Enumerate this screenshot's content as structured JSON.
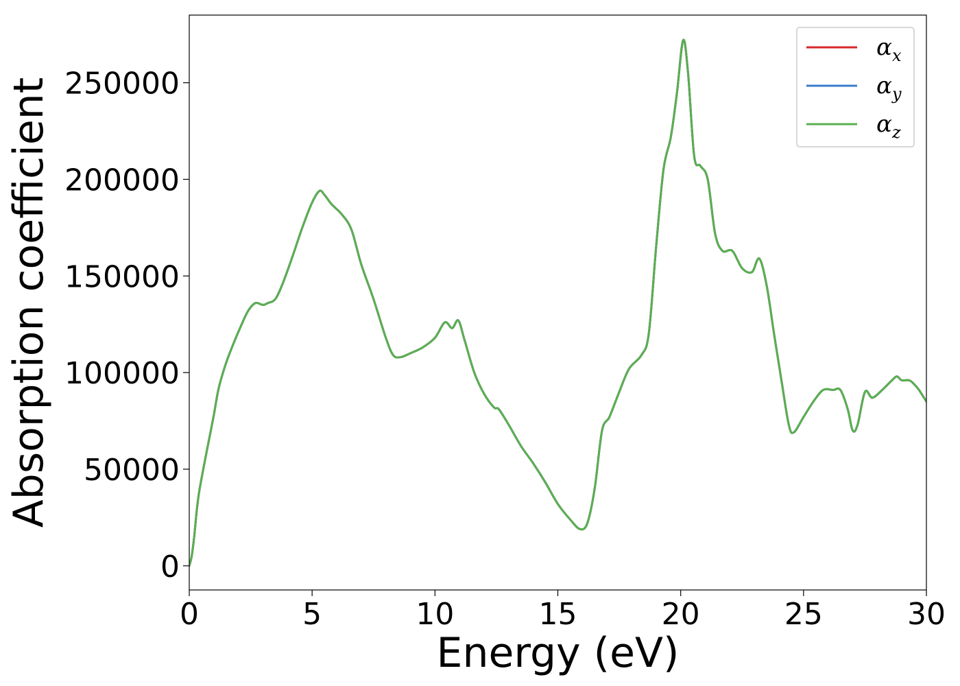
{
  "chart_data": {
    "type": "line",
    "title": "",
    "xlabel": "Energy (eV)",
    "ylabel": "Absorption coefficient",
    "xlim": [
      0,
      30
    ],
    "ylim": [
      -12500,
      285000
    ],
    "xticks": [
      0,
      5,
      10,
      15,
      20,
      25,
      30
    ],
    "yticks": [
      0,
      50000,
      100000,
      150000,
      200000,
      250000
    ],
    "grid": false,
    "legend_position": "top-right",
    "x": [
      0,
      0.1,
      0.2,
      0.3,
      0.4,
      0.6,
      0.8,
      1.0,
      1.2,
      1.5,
      1.8,
      2.1,
      2.4,
      2.7,
      3.0,
      3.2,
      3.5,
      3.8,
      4.2,
      4.6,
      5.0,
      5.3,
      5.5,
      5.8,
      6.2,
      6.6,
      7.0,
      7.5,
      8.0,
      8.3,
      8.6,
      9.0,
      9.5,
      10.0,
      10.4,
      10.7,
      10.95,
      11.2,
      11.6,
      12.0,
      12.4,
      12.6,
      13.0,
      13.5,
      14.0,
      14.5,
      15.0,
      15.5,
      15.9,
      16.2,
      16.5,
      16.8,
      17.1,
      17.5,
      17.9,
      18.4,
      18.7,
      19.0,
      19.3,
      19.6,
      19.85,
      20.1,
      20.3,
      20.55,
      20.8,
      21.1,
      21.4,
      21.7,
      22.1,
      22.5,
      22.9,
      23.2,
      23.5,
      23.8,
      24.1,
      24.4,
      24.6,
      25.0,
      25.4,
      25.8,
      26.2,
      26.5,
      26.8,
      27.0,
      27.2,
      27.5,
      27.8,
      28.2,
      28.6,
      28.8,
      29.0,
      29.3,
      29.5,
      29.7,
      30.0
    ],
    "series": [
      {
        "name": "α_x",
        "color": "#d62728",
        "values": [
          0,
          5000,
          15000,
          28000,
          38000,
          52000,
          65000,
          78000,
          92000,
          105000,
          115000,
          124000,
          132000,
          136000,
          135000,
          136000,
          138000,
          146000,
          160000,
          175000,
          188000,
          194000,
          192000,
          187000,
          182000,
          174000,
          156000,
          138000,
          118000,
          109000,
          108000,
          110000,
          113000,
          118000,
          126000,
          123000,
          127000,
          117000,
          100000,
          89000,
          82000,
          81000,
          73000,
          62000,
          53000,
          43000,
          32000,
          24000,
          19000,
          22000,
          40000,
          70000,
          77000,
          90000,
          102000,
          109000,
          120000,
          165000,
          205000,
          222000,
          245000,
          272000,
          255000,
          212000,
          207000,
          200000,
          172000,
          163000,
          163000,
          154000,
          152000,
          159000,
          145000,
          120000,
          96000,
          73000,
          69000,
          77000,
          85000,
          91000,
          91000,
          91000,
          81000,
          70000,
          73000,
          90000,
          87000,
          91000,
          96000,
          98000,
          96000,
          96000,
          94000,
          91000,
          85000
        ]
      },
      {
        "name": "α_y",
        "color": "#3a7bc8",
        "values": [
          0,
          5000,
          15000,
          28000,
          38000,
          52000,
          65000,
          78000,
          92000,
          105000,
          115000,
          124000,
          132000,
          136000,
          135000,
          136000,
          138000,
          146000,
          160000,
          175000,
          188000,
          194000,
          192000,
          187000,
          182000,
          174000,
          156000,
          138000,
          118000,
          109000,
          108000,
          110000,
          113000,
          118000,
          126000,
          123000,
          127000,
          117000,
          100000,
          89000,
          82000,
          81000,
          73000,
          62000,
          53000,
          43000,
          32000,
          24000,
          19000,
          22000,
          40000,
          70000,
          77000,
          90000,
          102000,
          109000,
          120000,
          165000,
          205000,
          222000,
          245000,
          272000,
          255000,
          212000,
          207000,
          200000,
          172000,
          163000,
          163000,
          154000,
          152000,
          159000,
          145000,
          120000,
          96000,
          73000,
          69000,
          77000,
          85000,
          91000,
          91000,
          91000,
          81000,
          70000,
          73000,
          90000,
          87000,
          91000,
          96000,
          98000,
          96000,
          96000,
          94000,
          91000,
          85000
        ]
      },
      {
        "name": "α_z",
        "color": "#5aaf50",
        "values": [
          0,
          5000,
          15000,
          28000,
          38000,
          52000,
          65000,
          78000,
          92000,
          105000,
          115000,
          124000,
          132000,
          136000,
          135000,
          136000,
          138000,
          146000,
          160000,
          175000,
          188000,
          194000,
          192000,
          187000,
          182000,
          174000,
          156000,
          138000,
          118000,
          109000,
          108000,
          110000,
          113000,
          118000,
          126000,
          123000,
          127000,
          117000,
          100000,
          89000,
          82000,
          81000,
          73000,
          62000,
          53000,
          43000,
          32000,
          24000,
          19000,
          22000,
          40000,
          70000,
          77000,
          90000,
          102000,
          109000,
          120000,
          165000,
          205000,
          222000,
          245000,
          272000,
          255000,
          212000,
          207000,
          200000,
          172000,
          163000,
          163000,
          154000,
          152000,
          159000,
          145000,
          120000,
          96000,
          73000,
          69000,
          77000,
          85000,
          91000,
          91000,
          91000,
          81000,
          70000,
          73000,
          90000,
          87000,
          91000,
          96000,
          98000,
          96000,
          96000,
          94000,
          91000,
          85000
        ]
      }
    ]
  }
}
